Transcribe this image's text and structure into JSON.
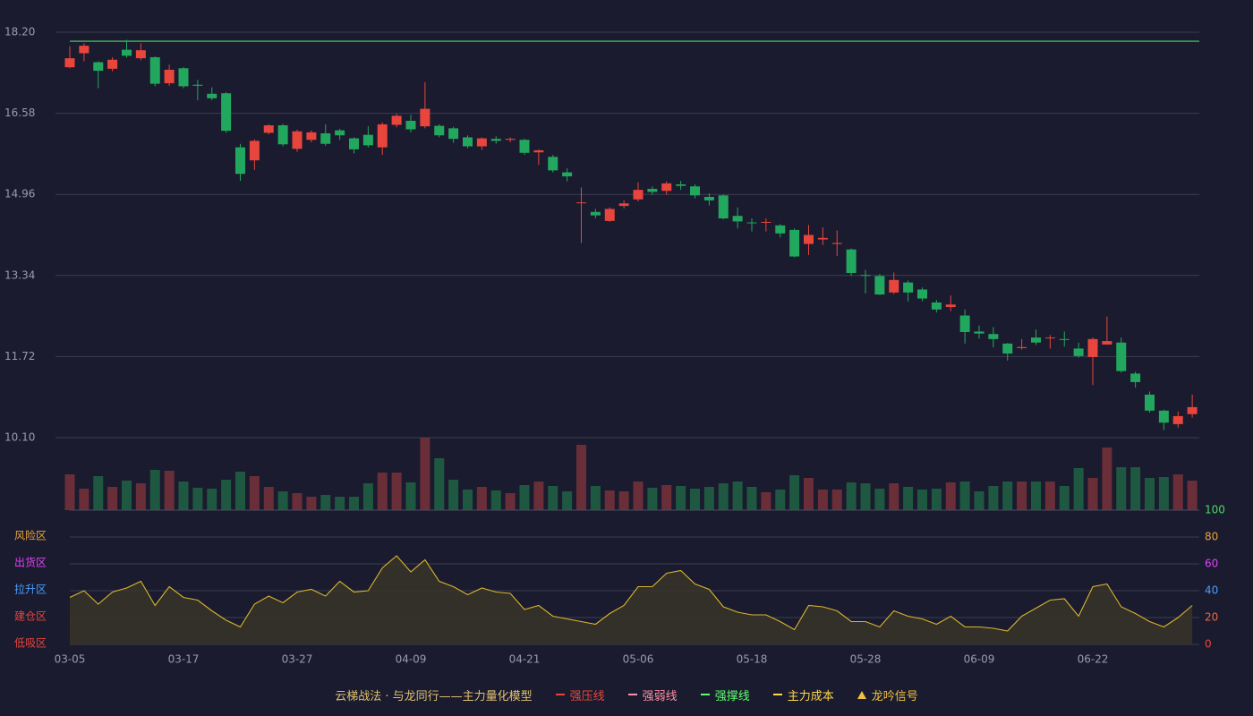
{
  "chart_data": {
    "type": "candlestick",
    "categories": [
      "03-05",
      null,
      null,
      null,
      null,
      null,
      null,
      null,
      "03-17",
      null,
      null,
      null,
      null,
      null,
      null,
      null,
      "03-27",
      null,
      null,
      null,
      null,
      null,
      null,
      null,
      "04-09",
      null,
      null,
      null,
      null,
      null,
      null,
      null,
      "04-21",
      null,
      null,
      null,
      null,
      null,
      null,
      null,
      "05-06",
      null,
      null,
      null,
      null,
      null,
      null,
      null,
      "05-18",
      null,
      null,
      null,
      null,
      null,
      null,
      null,
      "05-28",
      null,
      null,
      null,
      null,
      null,
      null,
      null,
      "06-09",
      null,
      null,
      null,
      null,
      null,
      null,
      null,
      "06-22",
      null,
      null,
      null,
      null,
      null,
      null,
      null
    ],
    "open": [
      17.5,
      17.78,
      17.6,
      17.47,
      17.85,
      17.68,
      17.7,
      17.18,
      17.48,
      17.15,
      16.97,
      16.98,
      15.9,
      15.64,
      16.19,
      16.34,
      15.87,
      16.05,
      16.18,
      16.24,
      16.08,
      16.15,
      15.9,
      16.35,
      16.43,
      16.32,
      16.33,
      16.28,
      16.1,
      15.92,
      16.07,
      16.05,
      16.05,
      15.8,
      15.71,
      15.4,
      14.79,
      14.61,
      14.43,
      14.73,
      14.86,
      15.07,
      15.03,
      15.16,
      15.12,
      14.91,
      14.94,
      14.53,
      14.4,
      14.4,
      14.34,
      14.25,
      13.97,
      14.06,
      13.97,
      13.86,
      13.35,
      13.33,
      13.0,
      13.2,
      13.06,
      12.8,
      12.71,
      12.54,
      12.22,
      12.17,
      11.98,
      11.89,
      12.1,
      12.09,
      12.07,
      11.88,
      11.71,
      11.96,
      12.0,
      11.38,
      10.96,
      10.64,
      10.37,
      10.57
    ],
    "high": [
      17.92,
      17.98,
      17.62,
      17.7,
      18.05,
      17.98,
      17.72,
      17.55,
      17.5,
      17.25,
      17.1,
      17.0,
      15.97,
      16.06,
      16.36,
      16.37,
      16.25,
      16.24,
      16.36,
      16.27,
      16.1,
      16.32,
      16.4,
      16.57,
      16.55,
      17.2,
      16.36,
      16.31,
      16.14,
      16.1,
      16.12,
      16.1,
      16.07,
      15.86,
      15.75,
      15.48,
      15.1,
      14.67,
      14.7,
      14.84,
      15.2,
      15.12,
      15.22,
      15.23,
      15.16,
      14.98,
      14.96,
      14.7,
      14.48,
      14.48,
      14.37,
      14.28,
      14.35,
      14.3,
      14.24,
      13.88,
      13.45,
      13.37,
      13.4,
      13.24,
      13.1,
      12.85,
      12.94,
      12.66,
      12.34,
      12.31,
      11.99,
      12.07,
      12.26,
      12.15,
      12.22,
      12.0,
      12.1,
      12.52,
      12.1,
      11.42,
      11.02,
      10.66,
      10.62,
      10.96
    ],
    "low": [
      17.48,
      17.62,
      17.08,
      17.42,
      17.69,
      17.64,
      17.12,
      17.13,
      17.08,
      16.84,
      16.84,
      16.19,
      15.23,
      15.45,
      16.16,
      15.92,
      15.81,
      16.0,
      15.93,
      16.05,
      15.78,
      15.9,
      15.75,
      16.3,
      16.2,
      16.28,
      16.1,
      15.99,
      15.88,
      15.85,
      15.97,
      16.0,
      15.75,
      15.55,
      15.4,
      15.22,
      13.99,
      14.48,
      14.41,
      14.68,
      14.82,
      14.95,
      14.95,
      15.05,
      14.88,
      14.74,
      14.46,
      14.28,
      14.22,
      14.22,
      14.1,
      13.7,
      13.75,
      13.95,
      13.73,
      13.33,
      12.98,
      12.95,
      12.97,
      12.82,
      12.83,
      12.6,
      12.63,
      11.98,
      12.08,
      11.9,
      11.64,
      11.86,
      11.95,
      11.88,
      11.92,
      11.7,
      11.15,
      11.98,
      11.4,
      11.1,
      10.6,
      10.25,
      10.3,
      10.5
    ],
    "close": [
      17.68,
      17.93,
      17.43,
      17.65,
      17.73,
      17.84,
      17.17,
      17.45,
      17.12,
      17.13,
      16.88,
      16.23,
      15.37,
      16.03,
      16.34,
      15.96,
      16.22,
      16.2,
      15.97,
      16.14,
      15.86,
      15.94,
      16.36,
      16.53,
      16.26,
      16.67,
      16.14,
      16.07,
      15.92,
      16.08,
      16.03,
      16.07,
      15.79,
      15.84,
      15.44,
      15.32,
      14.8,
      14.54,
      14.67,
      14.78,
      15.05,
      15.01,
      15.18,
      15.13,
      14.94,
      14.84,
      14.48,
      14.42,
      14.39,
      14.41,
      14.18,
      13.72,
      14.15,
      14.09,
      13.99,
      13.39,
      13.34,
      12.96,
      13.25,
      13.0,
      12.88,
      12.66,
      12.76,
      12.21,
      12.18,
      12.07,
      11.78,
      11.91,
      12.0,
      12.1,
      12.06,
      11.73,
      12.07,
      12.03,
      11.43,
      11.21,
      10.64,
      10.4,
      10.53,
      10.71
    ],
    "up_color": "#e8453c",
    "down_color": "#22a85e",
    "ylim": [
      10.1,
      18.2
    ],
    "yticks": [
      {
        "value": 18.2,
        "label": "18.20"
      },
      16.58,
      14.96,
      13.34,
      11.72,
      {
        "value": 10.1,
        "label": "10.10"
      }
    ],
    "grid": true,
    "reference_line": {
      "value": 18.02,
      "color": "#4cd964"
    },
    "volume": {
      "values": [
        40,
        24,
        38,
        26,
        33,
        30,
        45,
        44,
        32,
        25,
        24,
        34,
        43,
        38,
        26,
        21,
        19,
        15,
        17,
        15,
        15,
        30,
        42,
        42,
        31,
        81,
        58,
        34,
        23,
        26,
        22,
        19,
        28,
        32,
        27,
        21,
        73,
        27,
        22,
        21,
        32,
        25,
        28,
        27,
        24,
        26,
        30,
        32,
        26,
        20,
        23,
        39,
        36,
        23,
        23,
        31,
        30,
        24,
        30,
        26,
        23,
        24,
        31,
        32,
        21,
        27,
        32,
        32,
        32,
        32,
        27,
        47,
        36,
        70,
        48,
        48,
        36,
        37,
        40,
        33
      ],
      "up_color": "#6a2e38",
      "down_color": "#1f5840"
    },
    "indicator": {
      "values": [
        35,
        40,
        30,
        39,
        42,
        47,
        29,
        43,
        35,
        33,
        25,
        18,
        13,
        30,
        36,
        31,
        39,
        41,
        36,
        47,
        39,
        40,
        57,
        66,
        54,
        63,
        47,
        43,
        37,
        42,
        39,
        38,
        26,
        29,
        21,
        19,
        17,
        15,
        23,
        29,
        43,
        43,
        53,
        55,
        45,
        41,
        28,
        24,
        22,
        22,
        17,
        11,
        29,
        28,
        25,
        17,
        17,
        13,
        25,
        21,
        19,
        15,
        21,
        13,
        13,
        12,
        10,
        21,
        27,
        33,
        34,
        21,
        43,
        45,
        28,
        23,
        17,
        13,
        20,
        29
      ],
      "color": "#d9b62c",
      "fill": "#3a3428",
      "ylim": [
        0,
        100
      ],
      "yticks": [
        0,
        20,
        40,
        60,
        80,
        100
      ],
      "ytick_colors": [
        "#e8453c",
        "#ef6a3a",
        "#4a9eff",
        "#e040fb",
        "#e6a23c",
        "#4cd964"
      ],
      "zone_labels": [
        "低吸区",
        "建仓区",
        "拉升区",
        "出货区",
        "风险区",
        null
      ],
      "zone_colors": [
        "#e8453c",
        "#e8453c",
        "#4a9eff",
        "#e040fb",
        "#e6a23c",
        null
      ]
    },
    "legend": {
      "title": "云梯战法 · 与龙同行——主力量化模型",
      "title_color": "#e0c070",
      "entries": [
        {
          "name": "强压线",
          "color": "#e8453c",
          "style": "solid"
        },
        {
          "name": "强弱线",
          "color": "#ff8fa3",
          "style": "dashed"
        },
        {
          "name": "强撑线",
          "color": "#5cff6a",
          "style": "solid"
        },
        {
          "name": "主力成本",
          "color": "#ffd84a",
          "style": "dashed"
        },
        {
          "name": "龙吟信号",
          "color": "#f0c040",
          "style": "triangle"
        }
      ]
    }
  }
}
